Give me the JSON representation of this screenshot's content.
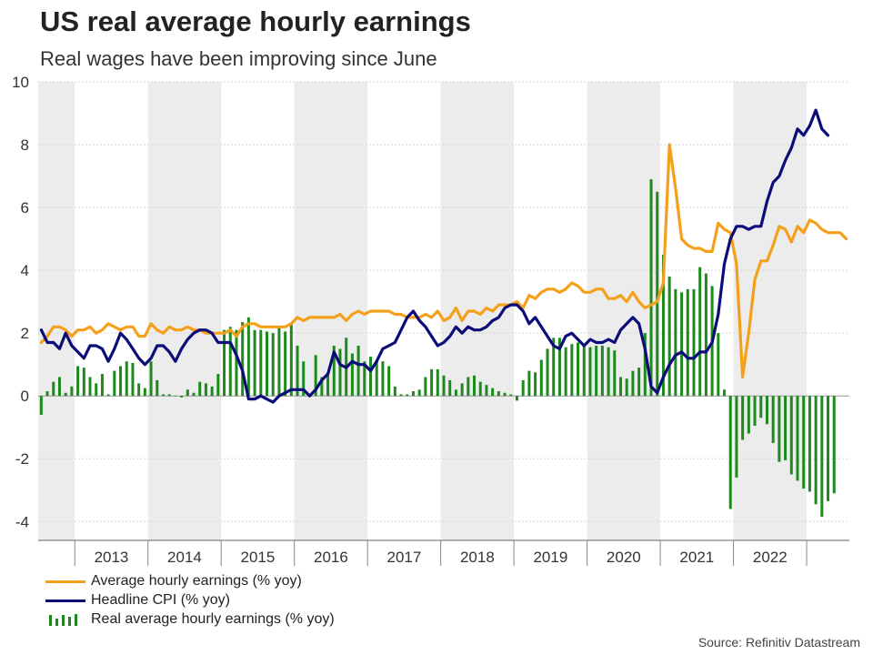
{
  "title": "US real average hourly earnings",
  "subtitle": "Real wages have been improving since June",
  "source": "Source: Refinitiv Datastream",
  "colors": {
    "ahe": "#f5a01a",
    "cpi": "#0b0b7a",
    "real": "#1e8a1e",
    "band": "#ececec",
    "grid": "#d6d6d6"
  },
  "legend": [
    {
      "label": "Average hourly earnings (% yoy)",
      "kind": "line",
      "series": "ahe"
    },
    {
      "label": "Headline CPI (% yoy)",
      "kind": "line",
      "series": "cpi"
    },
    {
      "label": "Real average hourly earnings (% yoy)",
      "kind": "bars",
      "series": "real"
    }
  ],
  "chart_data": {
    "type": "line+bar",
    "title": "US real average hourly earnings",
    "subtitle": "Real wages have been improving since June",
    "x_start": "2012-07",
    "frequency": "monthly",
    "ylim": [
      -4.6,
      10
    ],
    "yticks": [
      10,
      8,
      6,
      4,
      2,
      0,
      -2,
      -4
    ],
    "year_labels": [
      "2013",
      "2014",
      "2015",
      "2016",
      "2017",
      "2018",
      "2019",
      "2020",
      "2021",
      "2022"
    ],
    "year_start_index": 6,
    "shading": "alternate years",
    "series": [
      {
        "name": "Average hourly earnings (% yoy)",
        "key": "ahe",
        "type": "line",
        "values": [
          1.7,
          1.9,
          2.2,
          2.2,
          2.1,
          1.9,
          2.1,
          2.1,
          2.2,
          2.0,
          2.1,
          2.3,
          2.2,
          2.1,
          2.2,
          2.2,
          1.9,
          1.9,
          2.3,
          2.1,
          2.0,
          2.2,
          2.1,
          2.1,
          2.2,
          2.1,
          2.1,
          2.0,
          2.0,
          2.0,
          2.0,
          2.1,
          1.9,
          2.2,
          2.3,
          2.3,
          2.2,
          2.2,
          2.2,
          2.2,
          2.2,
          2.3,
          2.5,
          2.4,
          2.5,
          2.5,
          2.5,
          2.5,
          2.5,
          2.6,
          2.4,
          2.6,
          2.7,
          2.6,
          2.7,
          2.7,
          2.7,
          2.7,
          2.6,
          2.6,
          2.5,
          2.5,
          2.5,
          2.6,
          2.5,
          2.7,
          2.4,
          2.5,
          2.8,
          2.4,
          2.7,
          2.7,
          2.6,
          2.8,
          2.7,
          2.9,
          2.9,
          2.9,
          3.0,
          2.8,
          3.2,
          3.1,
          3.3,
          3.4,
          3.4,
          3.3,
          3.4,
          3.6,
          3.5,
          3.3,
          3.3,
          3.4,
          3.4,
          3.1,
          3.1,
          3.2,
          3.0,
          3.3,
          3.0,
          2.8,
          2.9,
          3.0,
          3.6,
          8.0,
          6.6,
          5.0,
          4.8,
          4.7,
          4.7,
          4.6,
          4.6,
          5.5,
          5.3,
          5.2,
          4.2,
          0.6,
          2.0,
          3.7,
          4.3,
          4.3,
          4.8,
          5.4,
          5.3,
          4.9,
          5.4,
          5.2,
          5.6,
          5.5,
          5.3,
          5.2,
          5.2,
          5.2,
          5.0
        ]
      },
      {
        "name": "Headline CPI (% yoy)",
        "key": "cpi",
        "type": "line",
        "values": [
          2.1,
          1.7,
          1.7,
          1.5,
          2.0,
          1.6,
          1.4,
          1.2,
          1.6,
          1.6,
          1.5,
          1.1,
          1.5,
          2.0,
          1.8,
          1.5,
          1.2,
          1.0,
          1.2,
          1.6,
          1.6,
          1.4,
          1.1,
          1.5,
          1.8,
          2.0,
          2.1,
          2.1,
          2.0,
          1.7,
          1.7,
          1.7,
          1.3,
          0.8,
          -0.1,
          -0.1,
          0.0,
          -0.1,
          -0.2,
          0.0,
          0.1,
          0.2,
          0.2,
          0.2,
          0.0,
          0.2,
          0.5,
          0.7,
          1.4,
          1.0,
          0.9,
          1.1,
          1.0,
          1.0,
          0.8,
          1.1,
          1.5,
          1.6,
          1.7,
          2.1,
          2.5,
          2.7,
          2.4,
          2.2,
          1.9,
          1.6,
          1.7,
          1.9,
          2.2,
          2.0,
          2.2,
          2.1,
          2.1,
          2.2,
          2.4,
          2.5,
          2.8,
          2.9,
          2.9,
          2.7,
          2.3,
          2.5,
          2.2,
          1.9,
          1.6,
          1.5,
          1.9,
          2.0,
          1.8,
          1.6,
          1.8,
          1.7,
          1.7,
          1.8,
          1.7,
          2.1,
          2.3,
          2.5,
          2.3,
          1.5,
          0.3,
          0.1,
          0.6,
          1.0,
          1.3,
          1.4,
          1.2,
          1.2,
          1.4,
          1.4,
          1.7,
          2.6,
          4.2,
          5.0,
          5.4,
          5.4,
          5.3,
          5.4,
          5.4,
          6.2,
          6.8,
          7.0,
          7.5,
          7.9,
          8.5,
          8.3,
          8.6,
          9.1,
          8.5,
          8.3
        ]
      },
      {
        "name": "Real average hourly earnings (% yoy)",
        "key": "real",
        "type": "bar",
        "values": [
          -0.6,
          0.15,
          0.45,
          0.6,
          0.1,
          0.3,
          0.95,
          0.9,
          0.6,
          0.4,
          0.7,
          0.05,
          0.8,
          0.95,
          1.1,
          1.05,
          0.4,
          0.25,
          1.1,
          0.5,
          0.05,
          0.05,
          0.0,
          -0.05,
          0.2,
          0.1,
          0.45,
          0.4,
          0.3,
          0.7,
          2.1,
          2.2,
          2.1,
          2.35,
          2.5,
          2.1,
          2.1,
          2.05,
          2.0,
          2.2,
          2.05,
          2.3,
          1.6,
          1.1,
          0.05,
          1.3,
          0.6,
          0.7,
          1.6,
          1.5,
          1.85,
          1.35,
          1.6,
          1.1,
          1.25,
          1.15,
          1.1,
          0.95,
          0.3,
          0.05,
          0.05,
          0.15,
          0.2,
          0.6,
          0.85,
          0.85,
          0.65,
          0.5,
          0.2,
          0.4,
          0.6,
          0.65,
          0.45,
          0.35,
          0.25,
          0.15,
          0.1,
          0.05,
          -0.15,
          0.5,
          0.8,
          0.75,
          1.15,
          1.5,
          1.85,
          1.85,
          1.55,
          1.65,
          1.7,
          1.65,
          1.55,
          1.6,
          1.6,
          1.55,
          1.45,
          0.6,
          0.55,
          0.8,
          0.9,
          2.0,
          6.9,
          6.5,
          4.5,
          3.8,
          3.4,
          3.3,
          3.4,
          3.4,
          4.1,
          3.9,
          3.5,
          2.0,
          0.2,
          -3.6,
          -2.6,
          -1.4,
          -1.2,
          -0.95,
          -0.7,
          -0.9,
          -1.5,
          -2.1,
          -2.05,
          -2.5,
          -2.7,
          -2.95,
          -3.05,
          -3.45,
          -3.85,
          -3.35,
          -3.1
        ]
      }
    ]
  }
}
